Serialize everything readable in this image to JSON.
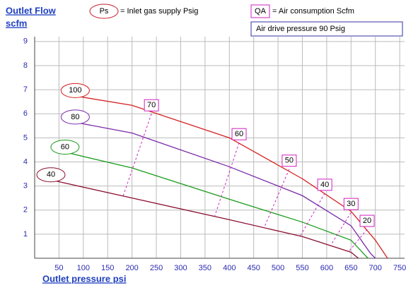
{
  "chart_data": {
    "type": "line",
    "y_label_lines": [
      "Outlet Flow",
      "scfm"
    ],
    "x_label": "Outlet pressure  psi",
    "legend": {
      "ps_key": "Ps",
      "ps_text": "= Inlet gas supply  Psig",
      "qa_key": "QA",
      "qa_text": "= Air consumption  Scfm",
      "note": "Air drive pressure  90 Psig"
    },
    "xlim": [
      0,
      760
    ],
    "ylim": [
      0,
      9.2
    ],
    "xticks": [
      50,
      100,
      150,
      200,
      250,
      300,
      350,
      400,
      450,
      500,
      550,
      600,
      650,
      700,
      750
    ],
    "yticks": [
      1,
      2,
      3,
      4,
      5,
      6,
      7,
      8,
      9
    ],
    "grid": true,
    "series": [
      {
        "name": "100",
        "color": "#d62020",
        "x": [
          95,
          200,
          400,
          550,
          650,
          700,
          725
        ],
        "values": [
          6.7,
          6.35,
          5.0,
          3.3,
          1.95,
          0.75,
          0
        ]
      },
      {
        "name": "80",
        "color": "#7a2aa8",
        "x": [
          95,
          200,
          400,
          550,
          650,
          690,
          700
        ],
        "values": [
          5.6,
          5.2,
          3.8,
          2.6,
          1.35,
          0.2,
          0
        ]
      },
      {
        "name": "60",
        "color": "#1a9a1a",
        "x": [
          74,
          200,
          400,
          550,
          650,
          680,
          685
        ],
        "values": [
          4.35,
          3.75,
          2.45,
          1.5,
          0.75,
          0.1,
          0
        ]
      },
      {
        "name": "40",
        "color": "#8a1030",
        "x": [
          45,
          200,
          400,
          550,
          650,
          665
        ],
        "values": [
          3.2,
          2.5,
          1.6,
          0.9,
          0.25,
          0
        ]
      }
    ],
    "qa_color": "#d020c0",
    "qa_lines": [
      {
        "name": "70",
        "x": [
          240,
          182
        ],
        "values": [
          6.0,
          2.6
        ]
      },
      {
        "name": "60",
        "x": [
          420,
          370
        ],
        "values": [
          4.8,
          1.75
        ]
      },
      {
        "name": "50",
        "x": [
          523,
          472
        ],
        "values": [
          3.7,
          1.3
        ]
      },
      {
        "name": "40",
        "x": [
          596,
          545
        ],
        "values": [
          2.7,
          0.9
        ]
      },
      {
        "name": "30",
        "x": [
          650,
          610
        ],
        "values": [
          1.9,
          0.6
        ]
      },
      {
        "name": "20",
        "x": [
          683,
          646
        ],
        "values": [
          1.2,
          0.3
        ]
      }
    ]
  }
}
